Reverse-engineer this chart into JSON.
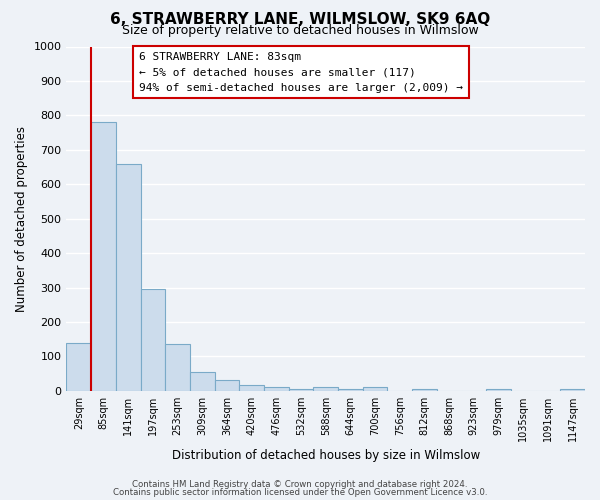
{
  "title": "6, STRAWBERRY LANE, WILMSLOW, SK9 6AQ",
  "subtitle": "Size of property relative to detached houses in Wilmslow",
  "xlabel": "Distribution of detached houses by size in Wilmslow",
  "ylabel": "Number of detached properties",
  "bin_labels": [
    "29sqm",
    "85sqm",
    "141sqm",
    "197sqm",
    "253sqm",
    "309sqm",
    "364sqm",
    "420sqm",
    "476sqm",
    "532sqm",
    "588sqm",
    "644sqm",
    "700sqm",
    "756sqm",
    "812sqm",
    "868sqm",
    "923sqm",
    "979sqm",
    "1035sqm",
    "1091sqm",
    "1147sqm"
  ],
  "bar_heights": [
    140,
    780,
    660,
    295,
    135,
    55,
    33,
    18,
    10,
    5,
    10,
    5,
    10,
    0,
    5,
    0,
    0,
    5,
    0,
    0,
    5
  ],
  "bar_color": "#ccdcec",
  "bar_edge_color": "#7aaac8",
  "vline_color": "#cc0000",
  "annotation_title": "6 STRAWBERRY LANE: 83sqm",
  "annotation_line1": "← 5% of detached houses are smaller (117)",
  "annotation_line2": "94% of semi-detached houses are larger (2,009) →",
  "annotation_box_color": "#ffffff",
  "annotation_box_edge_color": "#cc0000",
  "ylim": [
    0,
    1000
  ],
  "yticks": [
    0,
    100,
    200,
    300,
    400,
    500,
    600,
    700,
    800,
    900,
    1000
  ],
  "footer1": "Contains HM Land Registry data © Crown copyright and database right 2024.",
  "footer2": "Contains public sector information licensed under the Open Government Licence v3.0.",
  "bg_color": "#eef2f7",
  "grid_color": "#ffffff",
  "title_fontsize": 11,
  "subtitle_fontsize": 9
}
